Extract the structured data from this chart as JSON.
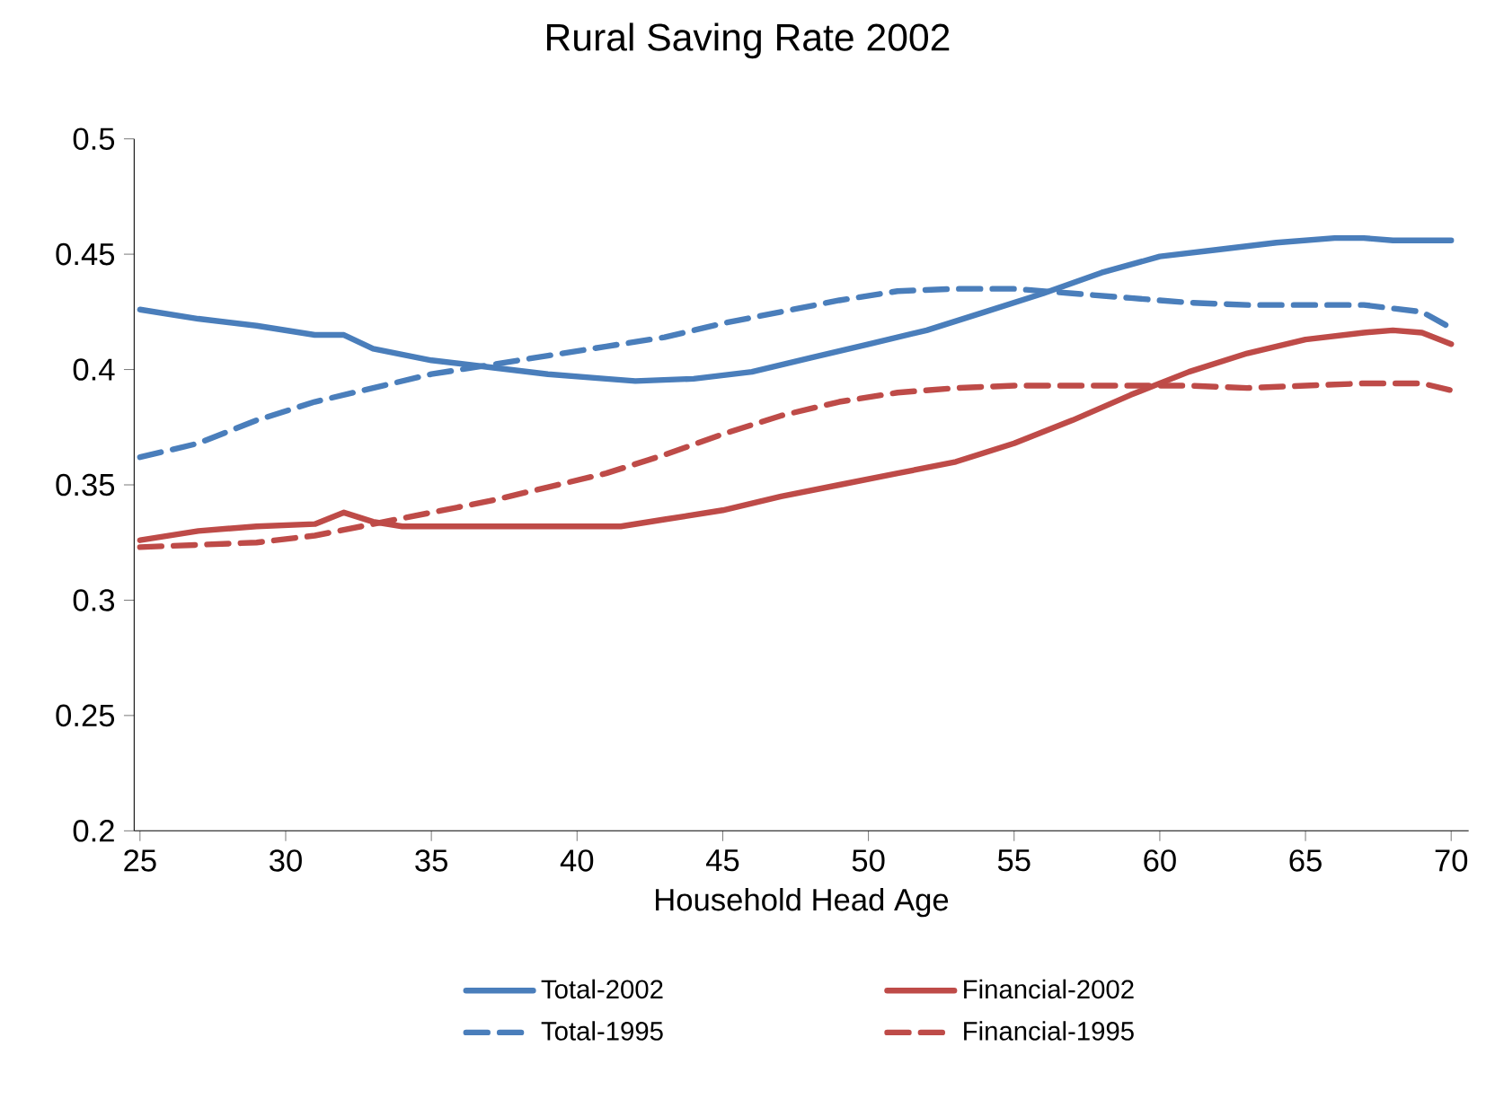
{
  "chart_data": {
    "type": "line",
    "title": "Rural Saving Rate 2002",
    "xlabel": "Household Head Age",
    "xlim": [
      24.8,
      70.6
    ],
    "ylim": [
      0.2,
      0.5
    ],
    "xticks": [
      25,
      30,
      35,
      40,
      45,
      50,
      55,
      60,
      65,
      70
    ],
    "yticks": [
      0.2,
      0.25,
      0.3,
      0.35,
      0.4,
      0.45,
      0.5
    ],
    "grid": false,
    "legend": "bottom",
    "marker": "none",
    "series": [
      {
        "name": "Total-2002",
        "color": "#4a7ebb",
        "line_style": "solid",
        "x": [
          25,
          27,
          29,
          31,
          32,
          33,
          35,
          37,
          39,
          41,
          42,
          44,
          46,
          48,
          50,
          52,
          54,
          56,
          58,
          60,
          62,
          64,
          66,
          67,
          68,
          70
        ],
        "values": [
          0.426,
          0.422,
          0.419,
          0.415,
          0.415,
          0.409,
          0.404,
          0.401,
          0.398,
          0.396,
          0.395,
          0.396,
          0.399,
          0.405,
          0.411,
          0.417,
          0.425,
          0.433,
          0.442,
          0.449,
          0.452,
          0.455,
          0.457,
          0.457,
          0.456,
          0.456
        ]
      },
      {
        "name": "Financial-2002",
        "color": "#be4b48",
        "line_style": "solid",
        "x": [
          25,
          27,
          29,
          31,
          32,
          33,
          34,
          36,
          38,
          40,
          41.5,
          43,
          45,
          47,
          49,
          51,
          53,
          55,
          57,
          59,
          61,
          63,
          65,
          67,
          68,
          69,
          70
        ],
        "values": [
          0.326,
          0.33,
          0.332,
          0.333,
          0.338,
          0.334,
          0.332,
          0.332,
          0.332,
          0.332,
          0.332,
          0.335,
          0.339,
          0.345,
          0.35,
          0.355,
          0.36,
          0.368,
          0.378,
          0.389,
          0.399,
          0.407,
          0.413,
          0.416,
          0.417,
          0.416,
          0.411
        ]
      },
      {
        "name": "Total-1995",
        "color": "#4a7ebb",
        "line_style": "dashed",
        "x": [
          25,
          27,
          29,
          31,
          33,
          35,
          37,
          39,
          41,
          43,
          45,
          47,
          49,
          51,
          53,
          55,
          57,
          59,
          61,
          63,
          65,
          67,
          69,
          70
        ],
        "values": [
          0.362,
          0.368,
          0.378,
          0.386,
          0.392,
          0.398,
          0.402,
          0.406,
          0.41,
          0.414,
          0.42,
          0.425,
          0.43,
          0.434,
          0.435,
          0.435,
          0.433,
          0.431,
          0.429,
          0.428,
          0.428,
          0.428,
          0.425,
          0.418
        ]
      },
      {
        "name": "Financial-1995",
        "color": "#be4b48",
        "line_style": "dashed",
        "x": [
          25,
          27,
          29,
          31,
          33,
          35,
          37,
          39,
          41,
          43,
          45,
          47,
          49,
          51,
          53,
          55,
          57,
          59,
          61,
          63,
          65,
          67,
          69,
          70
        ],
        "values": [
          0.323,
          0.324,
          0.325,
          0.328,
          0.333,
          0.338,
          0.343,
          0.349,
          0.355,
          0.363,
          0.372,
          0.38,
          0.386,
          0.39,
          0.392,
          0.393,
          0.393,
          0.393,
          0.393,
          0.392,
          0.393,
          0.394,
          0.394,
          0.391
        ]
      }
    ]
  }
}
